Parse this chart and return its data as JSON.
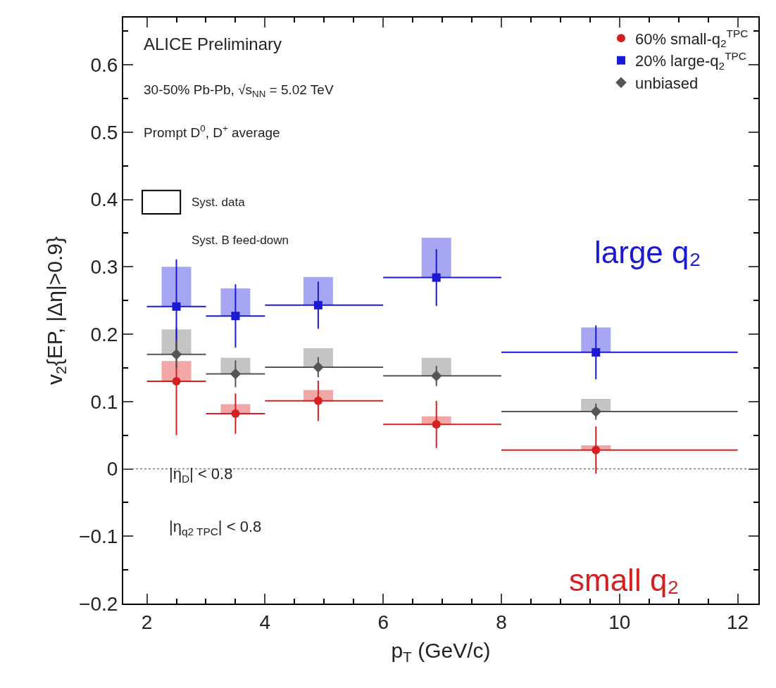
{
  "chart_data": {
    "type": "scatter",
    "xlabel": "p$_{T}$ (GeV/c)",
    "ylabel": "v$_{2}${EP, |Δη|>0.9}",
    "x": [
      2.5,
      3.5,
      4.9,
      6.9,
      9.6
    ],
    "series": [
      {
        "name": "60% small-q$_{2}$$^{TPC}$",
        "color": "#d42020",
        "marker": "circle",
        "values": [
          0.13,
          0.082,
          0.101,
          0.066,
          0.028
        ],
        "errors": [
          0.08,
          0.03,
          0.03,
          0.035,
          0.035
        ],
        "xerrors": [
          [
            2,
            3
          ],
          [
            3,
            4
          ],
          [
            4,
            6
          ],
          [
            6,
            8
          ],
          [
            8,
            12
          ]
        ]
      },
      {
        "name": "20% large-q$_{2}$$^{TPC}$",
        "color": "#1a1ad4",
        "marker": "square",
        "values": [
          0.241,
          0.227,
          0.243,
          0.284,
          0.173
        ],
        "errors": [
          0.07,
          0.047,
          0.035,
          0.042,
          0.04
        ],
        "xerrors": [
          [
            2,
            3
          ],
          [
            3,
            4
          ],
          [
            4,
            6
          ],
          [
            6,
            8
          ],
          [
            8,
            12
          ]
        ]
      },
      {
        "name": "unbiased",
        "color": "#555555",
        "marker": "diamond",
        "values": [
          0.17,
          0.141,
          0.151,
          0.138,
          0.085
        ],
        "errors": [
          0.02,
          0.02,
          0.015,
          0.015,
          0.012
        ],
        "xerrors": [
          [
            2,
            3
          ],
          [
            3,
            4
          ],
          [
            4,
            6
          ],
          [
            6,
            8
          ],
          [
            8,
            12
          ]
        ]
      },
      {
        "type": "bar",
        "color": "#f2a6a6",
        "base": [
          0.13,
          0.082,
          0.101,
          0.066,
          0.028
        ],
        "values": [
          0.03,
          0.014,
          0.016,
          0.012,
          0.007
        ]
      },
      {
        "type": "bar",
        "color": "#a6a6f2",
        "base": [
          0.241,
          0.227,
          0.243,
          0.284,
          0.173
        ],
        "values": [
          0.059,
          0.041,
          0.042,
          0.059,
          0.037
        ]
      },
      {
        "type": "bar",
        "color": "#c4c4c4",
        "base": [
          0.17,
          0.141,
          0.151,
          0.138,
          0.085
        ],
        "values": [
          0.037,
          0.024,
          0.028,
          0.027,
          0.019
        ]
      }
    ],
    "xlim": [
      1.6,
      12.35
    ],
    "xticks": [
      2,
      4,
      6,
      8,
      10,
      12
    ],
    "ylim": [
      -0.2,
      0.67
    ],
    "yticks": [
      -0.2,
      -0.1,
      0,
      0.1,
      0.2,
      0.3,
      0.4,
      0.5,
      0.6
    ],
    "ref_lines": [
      {
        "axis": "y",
        "value": 0,
        "line_style": "dotted",
        "color": "#777777"
      }
    ],
    "legend": "top right",
    "annotations": [
      "ALICE Preliminary",
      "30-50% Pb-Pb, √s$_{NN}$ = 5.02 TeV",
      "Prompt D$^{0}$, D$^{+}$ average",
      "Syst. data",
      "Syst. B feed-down",
      "|η$_{D}$| < 0.8",
      "|η$_{q2 TPC}$| < 0.8",
      "large q₂",
      "small q₂"
    ]
  }
}
